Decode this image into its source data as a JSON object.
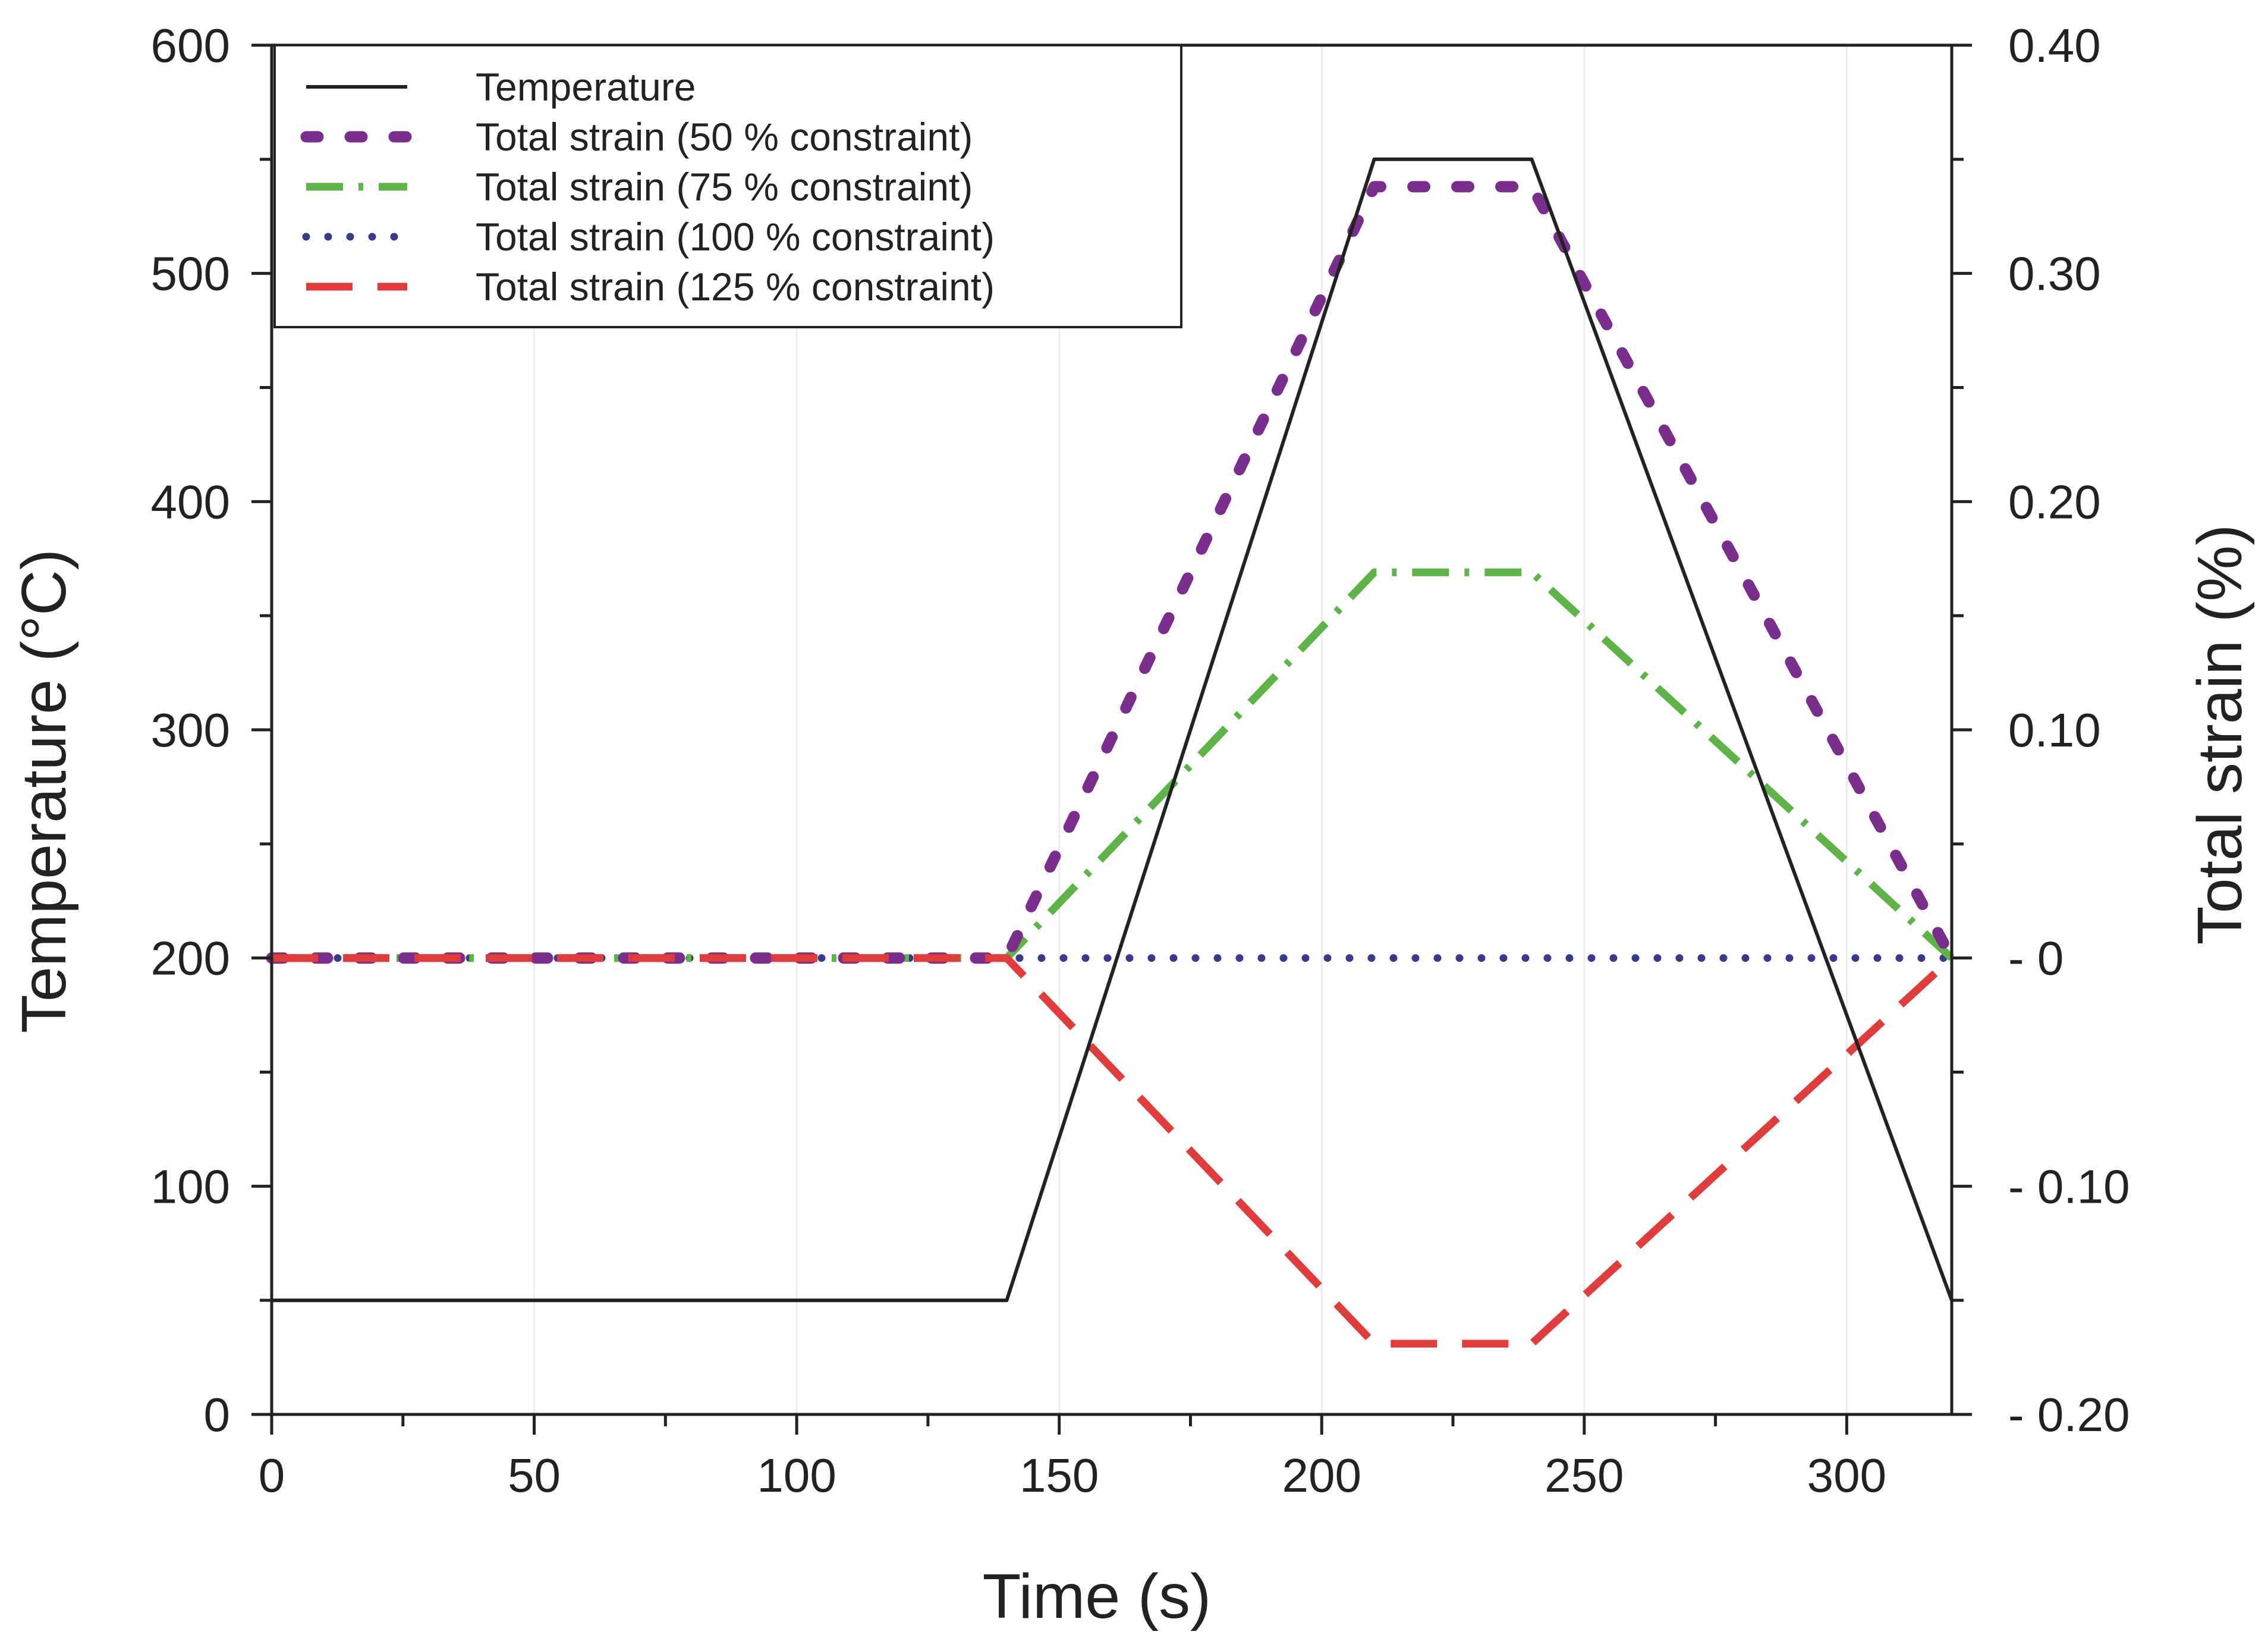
{
  "chart_data": {
    "type": "line",
    "xlabel": "Time (s)",
    "ylabel_left": "Temperature (°C)",
    "ylabel_right": "Total strain (%)",
    "xlim": [
      0,
      320
    ],
    "ylim_left": [
      0,
      600
    ],
    "ylim_right": [
      -0.2,
      0.4
    ],
    "x_ticks": [
      0,
      50,
      100,
      150,
      200,
      250,
      300
    ],
    "x_tick_labels": [
      "0",
      "50",
      "100",
      "150",
      "200",
      "250",
      "300"
    ],
    "y_left_ticks": [
      0,
      100,
      200,
      300,
      400,
      500,
      600
    ],
    "y_left_tick_labels": [
      "0",
      "100",
      "200",
      "300",
      "400",
      "500",
      "600"
    ],
    "y_right_ticks": [
      -0.2,
      -0.1,
      0,
      0.1,
      0.2,
      0.3,
      0.4
    ],
    "y_right_tick_labels": [
      "- 0.20",
      "- 0.10",
      "- 0",
      "0.10",
      "0.20",
      "0.30",
      "0.40"
    ],
    "legend_position": "top-left",
    "grid": "vertical-light",
    "series": [
      {
        "name": "Temperature",
        "axis": "left",
        "color": "#222222",
        "dash": "solid",
        "x": [
          0,
          140,
          210,
          240,
          320
        ],
        "y": [
          50,
          50,
          550,
          550,
          50
        ]
      },
      {
        "name": "Total strain (50 %  constraint)",
        "axis": "right",
        "color": "#7b2d8e",
        "dash": "dot-long",
        "x": [
          0,
          140,
          210,
          240,
          320
        ],
        "y": [
          0,
          0,
          0.338,
          0.338,
          0
        ]
      },
      {
        "name": "Total strain (75 %  constraint)",
        "axis": "right",
        "color": "#5cb545",
        "dash": "dash-dot",
        "x": [
          0,
          140,
          210,
          240,
          320
        ],
        "y": [
          0,
          0,
          0.169,
          0.169,
          0
        ]
      },
      {
        "name": "Total strain (100 % constraint)",
        "axis": "right",
        "color": "#3a3a8c",
        "dash": "dotted",
        "x": [
          0,
          140,
          210,
          240,
          320
        ],
        "y": [
          0,
          0,
          0,
          0,
          0
        ]
      },
      {
        "name": "Total strain (125 % constraint)",
        "axis": "right",
        "color": "#e23b3b",
        "dash": "dashed",
        "x": [
          0,
          140,
          210,
          240,
          320
        ],
        "y": [
          0,
          0,
          -0.169,
          -0.169,
          0
        ]
      }
    ]
  }
}
